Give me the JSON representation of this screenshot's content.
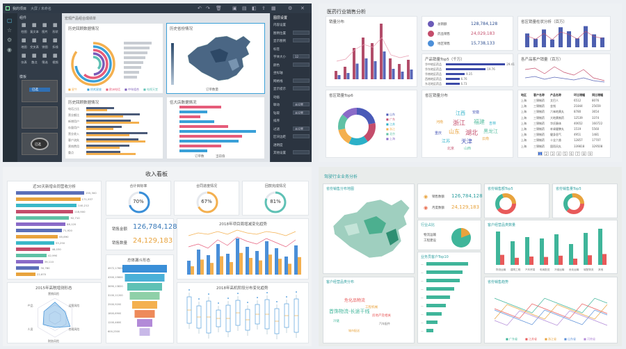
{
  "editor": {
    "tab_label": "我的项目",
    "tab_sub": "大屏 / 未命名",
    "search_placeholder": "搜索",
    "palette_header": "组件",
    "palette_items": [
      "柱图",
      "复文本",
      "图片",
      "形状",
      "地图",
      "交叉表",
      "饼图",
      "折线",
      "仪表",
      "散点",
      "筛选",
      "视频"
    ],
    "templates_header": "模板",
    "tpl_labels": [
      "已选",
      "已选"
    ],
    "canvas_title": "宏观产品组合成绩单",
    "panel1_title": "历史回顾数据情况",
    "panel2_title": "历史省份情况",
    "panel3_title": "历史回顾数据情况",
    "panel4_title": "伍大店数据情况",
    "legend": [
      "星牛",
      "拾贰星座",
      "欧洲电话",
      "中年组合",
      "电视天堂"
    ],
    "bar_labels": [
      "电话占比",
      "营业额比",
      "新增用户",
      "存量用户",
      "营业收入",
      "客户流失",
      "营销费用",
      "重点"
    ],
    "map_legend": "订单数量",
    "bar_legend": [
      "订单数",
      "当前值"
    ],
    "props_header": "图层设置",
    "props": [
      {
        "label": "内容设置",
        "val": ""
      },
      {
        "label": "图例位置",
        "val": ""
      },
      {
        "label": "显示图例",
        "val": ""
      },
      {
        "label": "标签",
        "val": ""
      },
      {
        "label": "字体大小",
        "val": "12"
      },
      {
        "label": "颜色",
        "val": ""
      },
      {
        "label": "坐标轴",
        "val": ""
      },
      {
        "label": "网格线",
        "val": ""
      },
      {
        "label": "显示提示",
        "val": ""
      },
      {
        "label": "动画",
        "val": ""
      },
      {
        "label": "联动",
        "val": "未设置"
      },
      {
        "label": "钻取",
        "val": "未设置"
      },
      {
        "label": "排序",
        "val": "未设置"
      },
      {
        "label": "过滤",
        "val": "未设置"
      },
      {
        "label": "区块边距",
        "val": ""
      },
      {
        "label": "透明度",
        "val": "62"
      },
      {
        "label": "其他设置",
        "val": ""
      }
    ]
  },
  "medical": {
    "title": "医药行业销售分析",
    "sales_title": "销量分布",
    "kpis": [
      {
        "label": "总销额",
        "value": "128,784,128"
      },
      {
        "label": "药品销售",
        "value": "24,029,183"
      },
      {
        "label": "地区销售",
        "value": "15,738,133"
      }
    ],
    "top_title": "产品销量Top5（千万）",
    "top_products": [
      {
        "name": "华中地区药品",
        "v": 29.41
      },
      {
        "name": "华东地区药品",
        "v": 19.76
      },
      {
        "name": "华南地区药品",
        "v": 9.35
      },
      {
        "name": "西南地区药品",
        "v": 6.76
      },
      {
        "name": "东北地区药品",
        "v": 6.73
      }
    ],
    "province_title": "省区销量柱状分析（百万）",
    "prov_cats": [
      "上海",
      "北京",
      "广东",
      "湖南",
      "浙江",
      "江苏",
      "山东",
      "福建",
      "天津",
      "重庆"
    ],
    "prov_vals": [
      62,
      38,
      80,
      35,
      90,
      72,
      40,
      95,
      58,
      44
    ],
    "trend_title": "各产品客户销量（百万）",
    "donut_title": "省区销量Top6",
    "donut_legend": [
      "山东",
      "广东",
      "江苏",
      "浙江",
      "北京",
      "上海"
    ],
    "cloud_title": "省区销量分布",
    "cloud_words": [
      "江西",
      "安徽",
      "河南",
      "浙江",
      "福建",
      "吉林",
      "重庆",
      "山东",
      "湖北",
      "黑龙江",
      "江苏",
      "天津",
      "云南",
      "北京",
      "山西"
    ],
    "table_headers": [
      "地区",
      "客户名称",
      "产品名称",
      "环比增幅",
      "同比增幅"
    ],
    "table_rows": [
      [
        "上海",
        "三锦制药",
        "艾巴人",
        "6512",
        "8076"
      ],
      [
        "上海",
        "三锦制药",
        "金钱",
        "21844",
        "25659"
      ],
      [
        "上海",
        "三锦制药",
        "六味地黄丸",
        "8780",
        "3654"
      ],
      [
        "上海",
        "三锦制药",
        "大地黄制药",
        "12539",
        "3374"
      ],
      [
        "上海",
        "三锦制药",
        "华氏脉体",
        "40652",
        "160722"
      ],
      [
        "上海",
        "三锦制药",
        "补肾健脾丸",
        "1519",
        "5560"
      ],
      [
        "上海",
        "三锦制药",
        "健身恶气",
        "4951",
        "1481"
      ],
      [
        "上海",
        "三锦制药",
        "十全六香",
        "12857",
        "17707"
      ],
      [
        "上海",
        "三锦制药",
        "固而风丸",
        "339818",
        "329508"
      ]
    ],
    "pager": [
      "1",
      "2",
      "3",
      "4",
      "5",
      "6",
      "7",
      "8",
      "9"
    ]
  },
  "income": {
    "title": "收入看板",
    "bar_title": "近30天新增合同营收分析",
    "bars": [
      {
        "name": "产品A",
        "v": "155,300"
      },
      {
        "name": "产品B",
        "v": "171,937"
      },
      {
        "name": "产品C",
        "v": "140,212"
      },
      {
        "name": "产品D",
        "v": "118,900"
      },
      {
        "name": "产品E",
        "v": "92,710"
      },
      {
        "name": "产品F",
        "v": "88,120"
      },
      {
        "name": "产品G",
        "v": "71,920"
      },
      {
        "name": "产品H",
        "v": "65,890"
      },
      {
        "name": "产品I",
        "v": "53,250"
      },
      {
        "name": "产品J",
        "v": "48,030"
      },
      {
        "name": "产品K",
        "v": "42,990"
      },
      {
        "name": "产品L",
        "v": "39,110"
      },
      {
        "name": "产品M",
        "v": "30,780"
      },
      {
        "name": "产品N",
        "v": "22,670"
      }
    ],
    "rings": [
      {
        "title": "合计目标率",
        "v": "70%",
        "p": 0.7
      },
      {
        "title": "合同进度情况",
        "v": "67%",
        "p": 0.67
      },
      {
        "title": "回款完成情况",
        "v": "81%",
        "p": 0.81
      }
    ],
    "sales_label": "销售金额",
    "sales_value": "126,784,128",
    "qty_label": "销售数量",
    "qty_value": "24,129,183",
    "combo_title": "2018年项目周增减变化趋势",
    "funnel_title": "总体漏斗形态",
    "funnel": [
      "4972,17602",
      "4300,15600",
      "3690,13820",
      "3100,11200",
      "2500,9200",
      "1800,6900",
      "1200,4600",
      "600,2300"
    ],
    "radar_title": "2015年高税增测形态",
    "radar_labels": [
      "营销风险",
      "运营风险",
      "合规风险",
      "财务风险",
      "人员",
      "产品"
    ],
    "box_title": "2018年高机阶段分布变化趋势"
  },
  "industry": {
    "title": "驾驶行业业务分析",
    "map_title": "省份销售分布地图",
    "kpi_title": "",
    "kpis": [
      {
        "label": "销售数额",
        "value": "126,784,128"
      },
      {
        "label": "月度数额",
        "value": "24,129,183"
      }
    ],
    "pie_title": "行业占比",
    "pie_legend": [
      "物流运输",
      "工程建设"
    ],
    "hbar_title": "业务员客户Top10",
    "donut1_title": "省份销售额Top5",
    "donut2_title": "省份销售量Top5",
    "col_title": "客户经营品类数量",
    "col_cats": [
      "物流运输",
      "建筑工程",
      "汽车贸易",
      "电商配送",
      "冷链运输",
      "危化运输",
      "城配物流",
      "其他"
    ],
    "cloud_title": "客户经营品类分布",
    "cloud_words": [
      "危化品物流",
      "首饰物流-长途干线",
      "工程机械",
      "房地产及相关",
      "冷链",
      "城市配送",
      "汽车配件"
    ],
    "line_title": "省份销售趋势",
    "line_legend": [
      "广东省",
      "江苏省",
      "浙江省",
      "山东省",
      "河南省"
    ]
  }
}
